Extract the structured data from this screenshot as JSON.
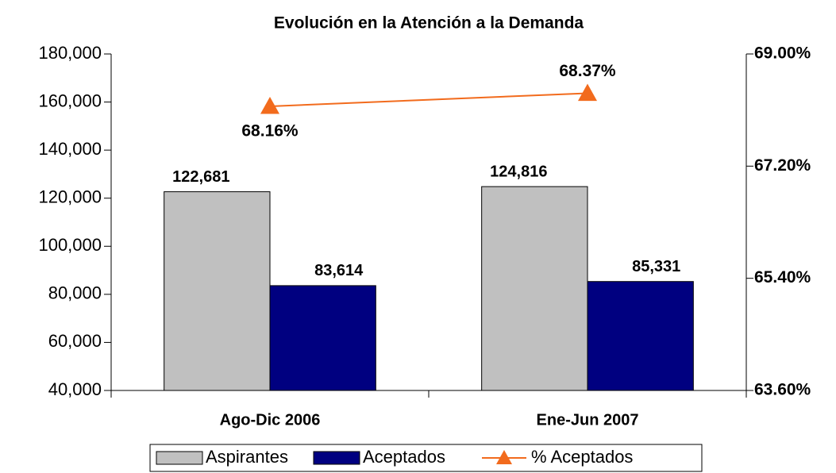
{
  "chart_data": {
    "type": "bar",
    "title": "Evolución en la Atención a la Demanda",
    "categories": [
      "Ago-Dic 2006",
      "Ene-Jun 2007"
    ],
    "series": [
      {
        "name": "Aspirantes",
        "color": "#c0c0c0",
        "values": [
          122681,
          124816
        ],
        "value_labels": [
          "122,681",
          "124,816"
        ]
      },
      {
        "name": "Aceptados",
        "color": "#000080",
        "values": [
          83614,
          85331
        ],
        "value_labels": [
          "83,614",
          "85,331"
        ]
      },
      {
        "name": "% Aceptados",
        "color": "#f26b1d",
        "axis": "y2",
        "values": [
          68.16,
          68.37
        ],
        "value_labels": [
          "68.16%",
          "68.37%"
        ]
      }
    ],
    "ylim": [
      40000,
      180000
    ],
    "yticks": [
      {
        "value": 40000,
        "label": "40,000"
      },
      {
        "value": 60000,
        "label": "60,000"
      },
      {
        "value": 80000,
        "label": "80,000"
      },
      {
        "value": 100000,
        "label": "100,000"
      },
      {
        "value": 120000,
        "label": "120,000"
      },
      {
        "value": 140000,
        "label": "140,000"
      },
      {
        "value": 160000,
        "label": "160,000"
      },
      {
        "value": 180000,
        "label": "180,000"
      }
    ],
    "y2lim": [
      63.6,
      69.0
    ],
    "y2ticks": [
      {
        "value": 63.6,
        "label": "63.60%"
      },
      {
        "value": 65.4,
        "label": "65.40%"
      },
      {
        "value": 67.2,
        "label": "67.20%"
      },
      {
        "value": 69.0,
        "label": "69.00%"
      }
    ],
    "grid": false,
    "legend": "bottom"
  }
}
